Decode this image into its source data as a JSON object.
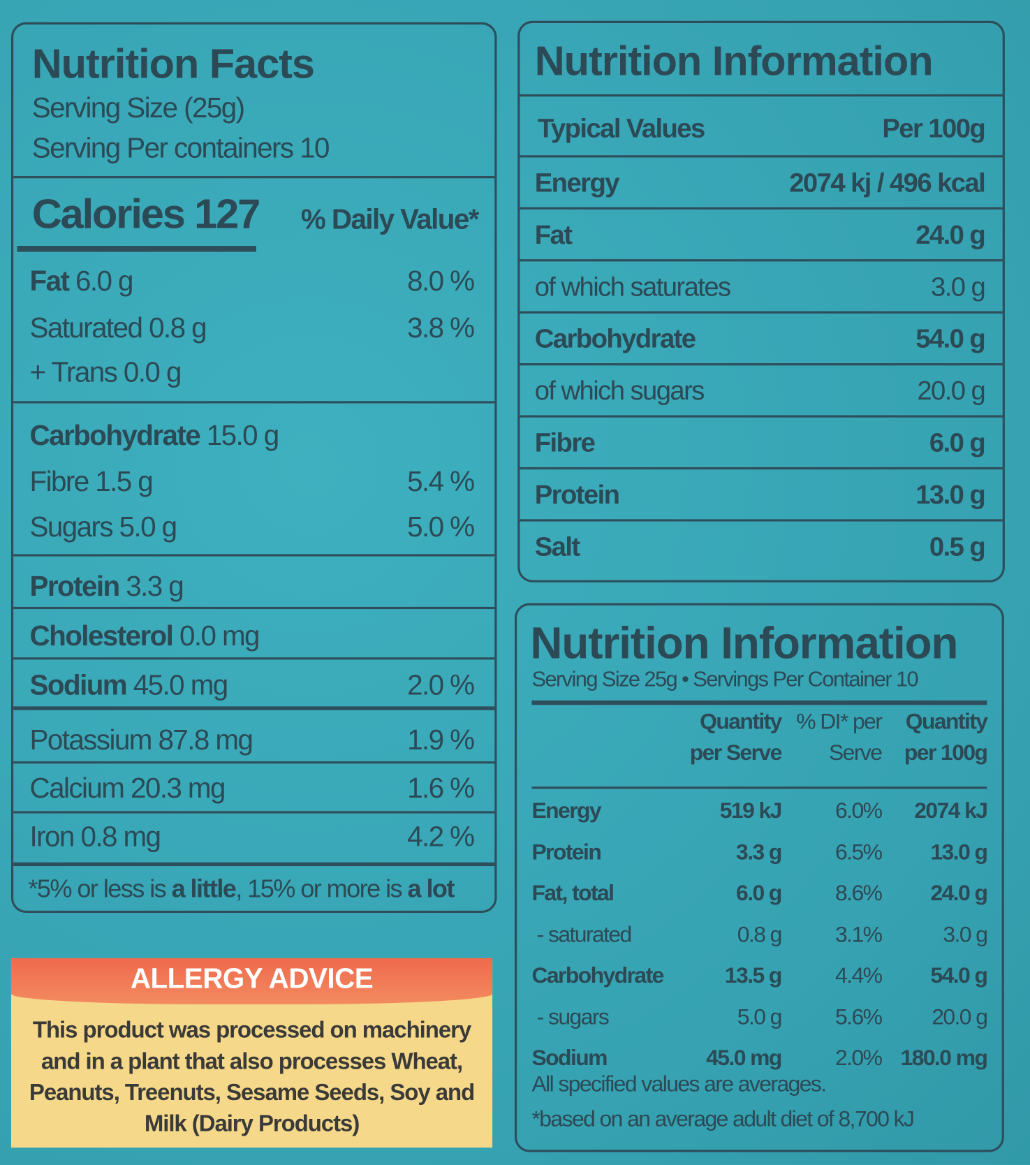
{
  "facts": {
    "title": "Nutrition Facts",
    "serving_size": "Serving Size (25g)",
    "servings": "Serving Per containers 10",
    "calories_label": "Calories 127",
    "dv_label": "% Daily Value*",
    "rows": [
      {
        "name": "Fat",
        "amount": "6.0 g",
        "dv": "8.0 %",
        "bold": true
      },
      {
        "name": "Saturated",
        "amount": "0.8 g",
        "dv": "3.8 %"
      },
      {
        "name": "+ Trans",
        "amount": "0.0 g",
        "dv": ""
      },
      {
        "name": "Carbohydrate",
        "amount": "15.0 g",
        "dv": "",
        "bold": true
      },
      {
        "name": "Fibre",
        "amount": "1.5 g",
        "dv": "5.4 %"
      },
      {
        "name": "Sugars",
        "amount": "5.0 g",
        "dv": "5.0 %"
      },
      {
        "name": "Protein",
        "amount": "3.3 g",
        "dv": "",
        "bold": true
      },
      {
        "name": "Cholesterol",
        "amount": "0.0 mg",
        "dv": "",
        "bold": true
      },
      {
        "name": "Sodium",
        "amount": "45.0 mg",
        "dv": "2.0 %",
        "bold": true
      },
      {
        "name": "Potassium",
        "amount": "87.8 mg",
        "dv": "1.9 %"
      },
      {
        "name": "Calcium",
        "amount": "20.3 mg",
        "dv": "1.6 %"
      },
      {
        "name": "Iron",
        "amount": "0.8 mg",
        "dv": "4.2 %"
      }
    ],
    "footnote": {
      "a": "*5% or less is ",
      "b": "a little",
      "c": ", 15% or more is ",
      "d": "a lot"
    }
  },
  "allergy": {
    "title": "ALLERGY ADVICE",
    "text": "This product was processed on machinery and in a plant that also processes Wheat, Peanuts, Treenuts, Sesame Seeds, Soy and Milk (Dairy Products)",
    "header_color": "#ef7654",
    "body_color": "#f5d889"
  },
  "info100": {
    "title": "Nutrition Information",
    "col_label": "Typical Values",
    "col_value": "Per 100g",
    "rows": [
      {
        "name": "Energy",
        "value": "2074 kj / 496 kcal",
        "bold": true
      },
      {
        "name": "Fat",
        "value": "24.0 g",
        "bold": true
      },
      {
        "name": "of which saturates",
        "value": "3.0 g",
        "bold": false
      },
      {
        "name": "Carbohydrate",
        "value": "54.0 g",
        "bold": true
      },
      {
        "name": "of which sugars",
        "value": "20.0 g",
        "bold": false
      },
      {
        "name": "Fibre",
        "value": "6.0 g",
        "bold": true
      },
      {
        "name": "Protein",
        "value": "13.0 g",
        "bold": true
      },
      {
        "name": "Salt",
        "value": "0.5 g",
        "bold": true
      }
    ]
  },
  "infoServe": {
    "title": "Nutrition Information",
    "subtitle": "Serving Size 25g • Servings Per Container 10",
    "headers": [
      {
        "l1": "Quantity",
        "l2": "per Serve"
      },
      {
        "l1": "% DI* per",
        "l2": "Serve"
      },
      {
        "l1": "Quantity",
        "l2": "per 100g"
      }
    ],
    "rows": [
      {
        "name": "Energy",
        "serve": "519 kJ",
        "di": "6.0%",
        "per100": "2074 kJ",
        "bold": true
      },
      {
        "name": "Protein",
        "serve": "3.3 g",
        "di": "6.5%",
        "per100": "13.0 g",
        "bold": true
      },
      {
        "name": "Fat, total",
        "serve": "6.0 g",
        "di": "8.6%",
        "per100": "24.0 g",
        "bold": true
      },
      {
        "name": " - saturated",
        "serve": "0.8 g",
        "di": "3.1%",
        "per100": "3.0 g",
        "bold": false
      },
      {
        "name": "Carbohydrate",
        "serve": "13.5 g",
        "di": "4.4%",
        "per100": "54.0 g",
        "bold": true
      },
      {
        "name": " - sugars",
        "serve": "5.0 g",
        "di": "5.6%",
        "per100": "20.0 g",
        "bold": false
      },
      {
        "name": "Sodium",
        "serve": "45.0 mg",
        "di": "2.0%",
        "per100": "180.0 mg",
        "bold": true
      }
    ],
    "note1": "All specified values are averages.",
    "note2": "*based on an average adult diet of 8,700 kJ"
  }
}
